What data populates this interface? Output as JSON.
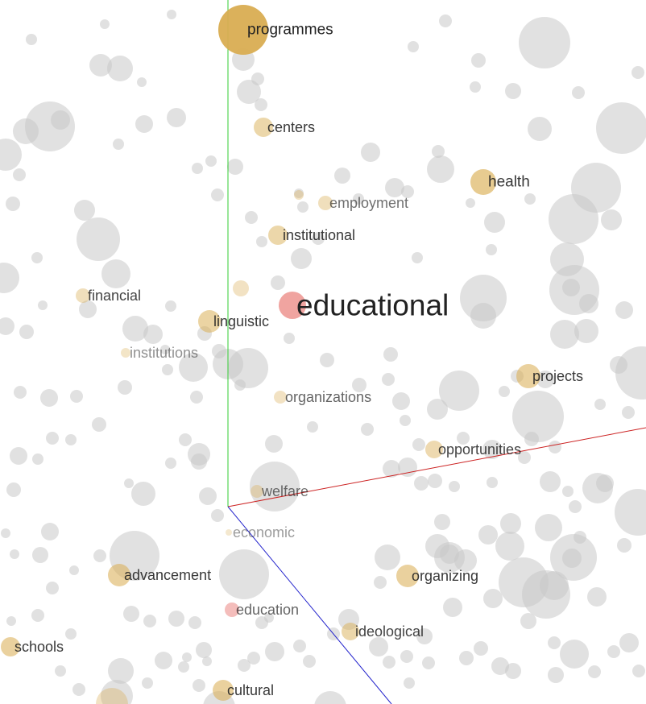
{
  "points": [
    {
      "word": "programmes",
      "tone": "gold",
      "weight": 1.0,
      "emphasis": 1.0
    },
    {
      "word": "centers",
      "tone": "gold",
      "weight": 0.35,
      "emphasis": 0.9
    },
    {
      "word": "health",
      "tone": "gold",
      "weight": 0.55,
      "emphasis": 0.9
    },
    {
      "word": "employment",
      "tone": "gold",
      "weight": 0.2,
      "emphasis": 0.65
    },
    {
      "word": "institutional",
      "tone": "gold",
      "weight": 0.35,
      "emphasis": 0.9
    },
    {
      "word": "financial",
      "tone": "gold",
      "weight": 0.2,
      "emphasis": 0.85
    },
    {
      "word": "educational",
      "tone": "red",
      "weight": 0.55,
      "emphasis": 1.0
    },
    {
      "word": "linguistic",
      "tone": "gold",
      "weight": 0.4,
      "emphasis": 0.9
    },
    {
      "word": "institutions",
      "tone": "gold",
      "weight": 0.1,
      "emphasis": 0.5
    },
    {
      "word": "projects",
      "tone": "gold",
      "weight": 0.45,
      "emphasis": 0.9
    },
    {
      "word": "organizations",
      "tone": "gold",
      "weight": 0.15,
      "emphasis": 0.7
    },
    {
      "word": "opportunities",
      "tone": "gold",
      "weight": 0.3,
      "emphasis": 0.85
    },
    {
      "word": "welfare",
      "tone": "gold",
      "weight": 0.15,
      "emphasis": 0.65
    },
    {
      "word": "economic",
      "tone": "gold",
      "weight": 0.05,
      "emphasis": 0.45
    },
    {
      "word": "advancement",
      "tone": "gold",
      "weight": 0.45,
      "emphasis": 0.9
    },
    {
      "word": "organizing",
      "tone": "gold",
      "weight": 0.45,
      "emphasis": 0.9
    },
    {
      "word": "education",
      "tone": "red",
      "weight": 0.3,
      "emphasis": 0.7
    },
    {
      "word": "ideological",
      "tone": "gold",
      "weight": 0.35,
      "emphasis": 0.85
    },
    {
      "word": "schools",
      "tone": "gold",
      "weight": 0.45,
      "emphasis": 0.9
    },
    {
      "word": "cultural",
      "tone": "gold",
      "weight": 0.45,
      "emphasis": 0.9
    }
  ],
  "colors": {
    "background": "#ffffff",
    "gold": "#d9ad52",
    "red": "#e8706b",
    "background_points": "#c8c8c8",
    "axis_x": "#cc2222",
    "axis_y": "#33cc33",
    "axis_z": "#2222cc",
    "label": "#222222"
  }
}
